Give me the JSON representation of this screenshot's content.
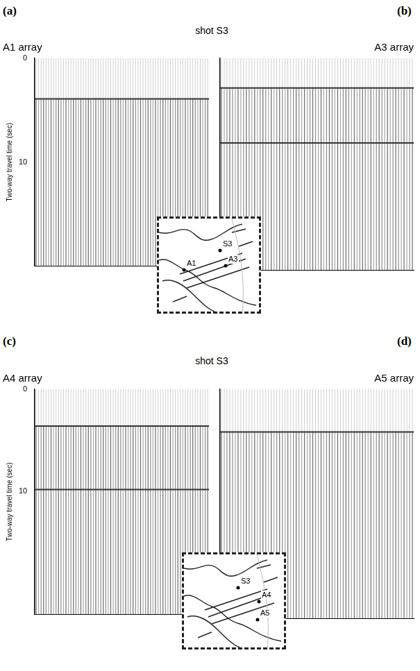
{
  "figure": {
    "headers": [
      "shot S3",
      "shot S3"
    ],
    "insets": [
      {
        "labels": [
          "S3",
          "A1",
          "A3"
        ]
      },
      {
        "labels": [
          "S3",
          "A4",
          "A5"
        ]
      }
    ]
  },
  "chart_data": [
    {
      "type": "line",
      "panel_label": "(a)",
      "title": "A1 array",
      "ylabel": "Two-way travel time (sec)",
      "ylim": [
        0,
        20
      ],
      "yticks": [
        0,
        10
      ],
      "tick_labels": "y",
      "grid": false,
      "categories": [
        null,
        null
      ],
      "series": [
        {
          "color": "#333333",
          "values": [
            3.9,
            3.9
          ]
        }
      ]
    },
    {
      "type": "line",
      "panel_label": "(b)",
      "title": "A3 array",
      "ylim": [
        0,
        20
      ],
      "yticks": [
        0,
        10
      ],
      "tick_labels": false,
      "grid": false,
      "categories": [
        null,
        null
      ],
      "series": [
        {
          "color": "#333333",
          "values": [
            2.8,
            2.8
          ]
        },
        {
          "color": "#333333",
          "values": [
            8.0,
            8.0
          ]
        }
      ]
    },
    {
      "type": "line",
      "panel_label": "(c)",
      "title": "A4 array",
      "ylabel": "Two-way travel time (sec)",
      "ylim": [
        0,
        22
      ],
      "yticks": [
        0,
        10
      ],
      "tick_labels": "y",
      "grid": false,
      "categories": [
        null,
        null
      ],
      "series": [
        {
          "color": "#333333",
          "values": [
            3.6,
            3.6
          ]
        },
        {
          "color": "#333333",
          "values": [
            9.8,
            9.8
          ]
        }
      ]
    },
    {
      "type": "line",
      "panel_label": "(d)",
      "title": "A5 array",
      "ylim": [
        0,
        22
      ],
      "yticks": [
        0,
        10
      ],
      "tick_labels": false,
      "grid": false,
      "categories": [
        null,
        null
      ],
      "series": [
        {
          "color": "#333333",
          "values": [
            4.1,
            4.1
          ]
        }
      ]
    }
  ]
}
